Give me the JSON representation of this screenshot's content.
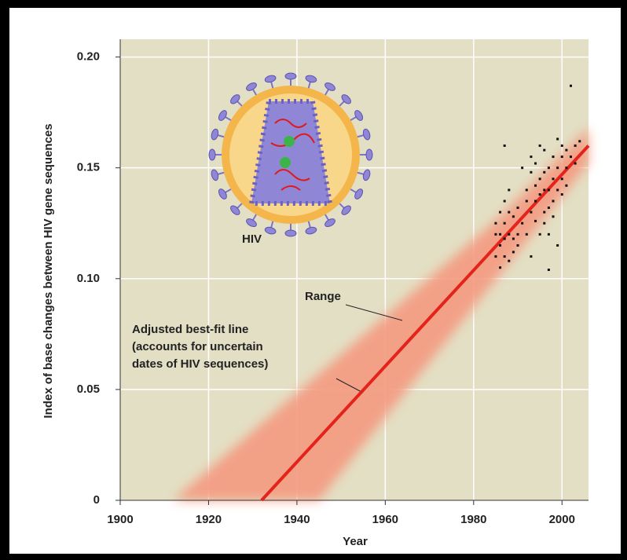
{
  "chart_data": {
    "type": "scatter",
    "x_label": "Year",
    "y_label": "Index of base changes between HIV gene sequences",
    "xlim": [
      1900,
      2006
    ],
    "ylim": [
      0,
      0.208
    ],
    "xticks": [
      1900,
      1920,
      1940,
      1960,
      1980,
      2000
    ],
    "yticks": [
      0,
      0.05,
      {
        "value": 0.1,
        "label": "0.10"
      },
      0.15,
      {
        "value": 0.2,
        "label": "0.20"
      }
    ],
    "grid": true,
    "background": "#e3dfc4",
    "series": [
      {
        "color": "#111111",
        "x": [
          1985,
          1985,
          1985,
          1986,
          1986,
          1986,
          1986,
          1987,
          1987,
          1987,
          1987,
          1987,
          1988,
          1988,
          1988,
          1988,
          1989,
          1989,
          1989,
          1990,
          1990,
          1990,
          1991,
          1991,
          1992,
          1992,
          1992,
          1993,
          1993,
          1993,
          1993,
          1994,
          1994,
          1994,
          1994,
          1995,
          1995,
          1995,
          1995,
          1996,
          1996,
          1996,
          1996,
          1996,
          1997,
          1997,
          1997,
          1997,
          1997,
          1998,
          1998,
          1998,
          1998,
          1999,
          1999,
          1999,
          1999,
          2000,
          2000,
          2000,
          2000,
          2001,
          2001,
          2001,
          2002,
          2002,
          2003,
          2003,
          2004
        ],
        "values": [
          0.12,
          0.11,
          0.125,
          0.13,
          0.115,
          0.105,
          0.12,
          0.125,
          0.135,
          0.11,
          0.118,
          0.16,
          0.13,
          0.12,
          0.108,
          0.14,
          0.128,
          0.118,
          0.112,
          0.132,
          0.12,
          0.115,
          0.15,
          0.125,
          0.14,
          0.12,
          0.135,
          0.148,
          0.13,
          0.11,
          0.155,
          0.142,
          0.126,
          0.135,
          0.152,
          0.145,
          0.12,
          0.138,
          0.16,
          0.13,
          0.148,
          0.125,
          0.14,
          0.158,
          0.14,
          0.132,
          0.15,
          0.104,
          0.12,
          0.145,
          0.135,
          0.155,
          0.128,
          0.15,
          0.14,
          0.163,
          0.115,
          0.145,
          0.155,
          0.138,
          0.16,
          0.15,
          0.142,
          0.158,
          0.155,
          0.187,
          0.16,
          0.152,
          0.162
        ]
      }
    ],
    "fit_line": {
      "color": "#e4231b",
      "x": [
        1932,
        2006
      ],
      "y": [
        0,
        0.16
      ]
    },
    "range_band": {
      "color": "#f49a80",
      "x": [
        1912,
        1986,
        2006,
        2006,
        1945
      ],
      "y": [
        0,
        0.128,
        0.168,
        0.152,
        0
      ]
    },
    "annotations": {
      "virus": "HIV",
      "range": "Range",
      "fit_line": [
        "Adjusted best-fit line",
        "(accounts for uncertain",
        "dates of HIV sequences)"
      ]
    }
  }
}
